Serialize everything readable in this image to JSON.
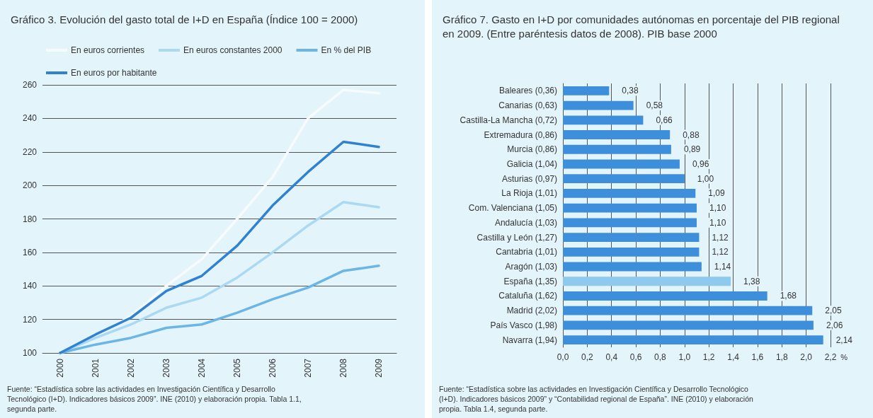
{
  "chart_data": [
    {
      "type": "line",
      "title": "Gráfico 3. Evolución del gasto total de I+D en España (Índice 100 = 2000)",
      "categories": [
        "2000",
        "2001",
        "2002",
        "2003",
        "2004",
        "2005",
        "2006",
        "2007",
        "2008",
        "2009"
      ],
      "series": [
        {
          "name": "En euros corrientes",
          "color": "#f7fbfe",
          "values": [
            100,
            110,
            122,
            140,
            156,
            180,
            205,
            240,
            257,
            255
          ]
        },
        {
          "name": "En euros constantes 2000",
          "color": "#aad9f2",
          "values": [
            100,
            109,
            117,
            127,
            133,
            145,
            160,
            176,
            190,
            187
          ]
        },
        {
          "name": "En % del PIB",
          "color": "#6cb6e6",
          "values": [
            100,
            105,
            109,
            115,
            117,
            124,
            132,
            139,
            149,
            152
          ]
        },
        {
          "name": "En euros por habitante",
          "color": "#2f82d2",
          "values": [
            100,
            111,
            121,
            137,
            146,
            164,
            188,
            208,
            226,
            223
          ]
        }
      ],
      "ylim": [
        100,
        260
      ],
      "yticks": [
        100,
        120,
        140,
        160,
        180,
        200,
        220,
        240,
        260
      ],
      "grid": "y",
      "legend": "top",
      "marker": "none",
      "line_style": "solid",
      "annotations": [
        "Fuente: “Estadística sobre las actividades en Investigación Científica y Desarrollo Tecnológico (I+D). Indicadores básicos 2009”. INE (2010) y elaboración propia. Tabla 1.1, segunda parte."
      ]
    },
    {
      "type": "bar",
      "orientation": "horizontal",
      "title": "Gráfico 7. Gasto en I+D por comunidades autónomas en porcentaje del PIB regional en 2009. (Entre paréntesis datos de 2008). PIB base 2000",
      "categories": [
        "Baleares (0,36)",
        "Canarias (0,63)",
        "Castilla-La Mancha (0,72)",
        "Extremadura (0,86)",
        "Murcia (0,86)",
        "Galicia (1,04)",
        "Asturias (0,97)",
        "La Rioja (1,01)",
        "Com. Valenciana (1,05)",
        "Andalucía (1,03)",
        "Castilla y León (1,27)",
        "Cantabria (1,01)",
        "Aragón (1,03)",
        "España (1,35)",
        "Cataluña (1,62)",
        "Madrid (2,02)",
        "País Vasco (1,98)",
        "Navarra (1,94)"
      ],
      "values": [
        0.38,
        0.58,
        0.66,
        0.88,
        0.89,
        0.96,
        1.0,
        1.09,
        1.1,
        1.1,
        1.12,
        1.12,
        1.14,
        1.38,
        1.68,
        2.05,
        2.06,
        2.14
      ],
      "value_labels": [
        "0,38",
        "0,58",
        "0,66",
        "0,88",
        "0,89",
        "0,96",
        "1,00",
        "1,09",
        "1,10",
        "1,10",
        "1,12",
        "1,12",
        "1,14",
        "1,38",
        "1,68",
        "2,05",
        "2,06",
        "2,14"
      ],
      "colors": [
        "#3d8fdc",
        "#3d8fdc",
        "#3d8fdc",
        "#3d8fdc",
        "#3d8fdc",
        "#3d8fdc",
        "#3d8fdc",
        "#3d8fdc",
        "#3d8fdc",
        "#3d8fdc",
        "#3d8fdc",
        "#3d8fdc",
        "#3d8fdc",
        "#8ec9ee",
        "#3d8fdc",
        "#3d8fdc",
        "#3d8fdc",
        "#3d8fdc"
      ],
      "xlim": [
        0,
        2.2
      ],
      "xticks": [
        {
          "value": 0,
          "label": "0,0"
        },
        {
          "value": 0.2,
          "label": "0,2"
        },
        {
          "value": 0.4,
          "label": "0,4"
        },
        {
          "value": 0.6,
          "label": "0,6"
        },
        {
          "value": 0.8,
          "label": "0,8"
        },
        {
          "value": 1.0,
          "label": "1,0"
        },
        {
          "value": 1.2,
          "label": "1,2"
        },
        {
          "value": 1.4,
          "label": "1,4"
        },
        {
          "value": 1.6,
          "label": "1,6"
        },
        {
          "value": 1.8,
          "label": "1,8"
        },
        {
          "value": 2.0,
          "label": "2,0"
        },
        {
          "value": 2.2,
          "label": "2,2"
        }
      ],
      "xlabel": "%",
      "grid": "x",
      "legend": false,
      "annotations": [
        "Fuente: “Estadística sobre las actividades en Investigación Científica y Desarrollo Tecnológico (I+D). Indicadores básicos 2009” y “Contabilidad regional de España”. INE (2010) y elaboración propia. Tabla 1.4, segunda parte."
      ]
    }
  ]
}
